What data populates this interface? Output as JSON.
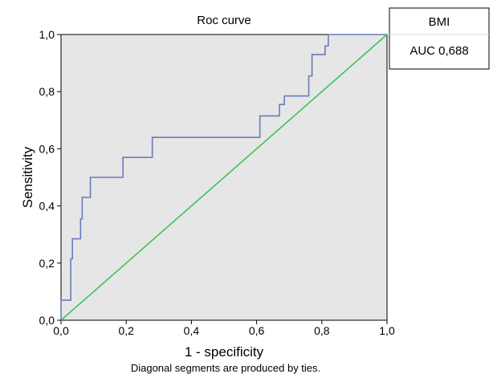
{
  "chart_data": {
    "type": "line",
    "title": "Roc curve",
    "xlabel": "1 - specificity",
    "ylabel": "Sensitivity",
    "footnote": "Diagonal segments are produced by ties.",
    "xlim": [
      0,
      1
    ],
    "ylim": [
      0,
      1
    ],
    "x_ticks": [
      "0,0",
      "0,2",
      "0,4",
      "0,6",
      "0,8",
      "1,0"
    ],
    "y_ticks": [
      "0,0",
      "0,2",
      "0,4",
      "0,6",
      "0,8",
      "1,0"
    ],
    "legend": {
      "placement": "top-right",
      "line1": "BMI",
      "line2": "AUC 0,688"
    },
    "series": [
      {
        "color": "#6a7bbb",
        "x": [
          0,
          0,
          0.03,
          0.03,
          0.03,
          0.035,
          0.035,
          0.06,
          0.06,
          0.065,
          0.065,
          0.09,
          0.09,
          0.19,
          0.19,
          0.28,
          0.28,
          0.61,
          0.61,
          0.67,
          0.67,
          0.685,
          0.685,
          0.76,
          0.76,
          0.77,
          0.77,
          0.785,
          0.785,
          0.81,
          0.81,
          0.82,
          0.82,
          1.0
        ],
        "y": [
          0,
          0.07,
          0.07,
          0.21,
          0.215,
          0.215,
          0.285,
          0.285,
          0.355,
          0.355,
          0.43,
          0.43,
          0.5,
          0.5,
          0.57,
          0.57,
          0.64,
          0.64,
          0.715,
          0.715,
          0.755,
          0.755,
          0.785,
          0.785,
          0.855,
          0.855,
          0.93,
          0.93,
          0.93,
          0.93,
          0.96,
          0.96,
          1.0,
          1.0
        ]
      },
      {
        "color": "#3cc45a",
        "x": [
          0,
          1
        ],
        "y": [
          0,
          1
        ]
      }
    ],
    "grid": false,
    "colors": {
      "plot_background": "#e6e6e6",
      "frame": "#000000"
    }
  }
}
